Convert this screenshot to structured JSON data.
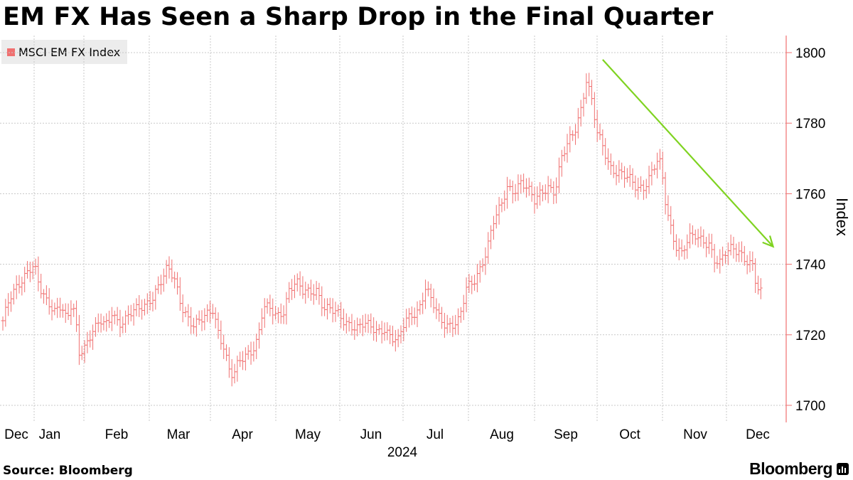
{
  "chart_data": {
    "type": "line",
    "style": "ohlc-bars",
    "title": "EM FX Has Seen a Sharp Drop in the Final Quarter",
    "series": [
      {
        "name": "MSCI EM FX Index",
        "color": "#f07070"
      }
    ],
    "ylabel": "Index",
    "ylim": [
      1695,
      1803
    ],
    "yticks": [
      1700,
      1720,
      1740,
      1760,
      1780,
      1800
    ],
    "xticks": [
      "Dec",
      "Jan",
      "Feb",
      "Mar",
      "Apr",
      "May",
      "Jun",
      "Jul",
      "Aug",
      "Sep",
      "Oct",
      "Nov",
      "Dec"
    ],
    "x_year": "2024",
    "anchors": [
      [
        0,
        1724
      ],
      [
        0.5,
        1730
      ],
      [
        1.15,
        1734
      ],
      [
        1.9,
        1739
      ],
      [
        2.3,
        1740
      ],
      [
        2.7,
        1733
      ],
      [
        3.2,
        1729
      ],
      [
        3.8,
        1727
      ],
      [
        4.3,
        1729
      ],
      [
        4.7,
        1724
      ],
      [
        5.0,
        1728
      ],
      [
        5.3,
        1726
      ],
      [
        5.55,
        1714
      ],
      [
        6.1,
        1717
      ],
      [
        6.6,
        1722
      ],
      [
        7.2,
        1724
      ],
      [
        7.7,
        1722
      ],
      [
        8.0,
        1726
      ],
      [
        8.5,
        1723
      ],
      [
        9.0,
        1725
      ],
      [
        9.5,
        1727
      ],
      [
        10.0,
        1727
      ],
      [
        10.5,
        1728
      ],
      [
        11.0,
        1731
      ],
      [
        11.5,
        1735
      ],
      [
        12.1,
        1739
      ],
      [
        12.6,
        1735
      ],
      [
        13.1,
        1728
      ],
      [
        13.6,
        1725
      ],
      [
        14.0,
        1723
      ],
      [
        14.5,
        1724
      ],
      [
        14.9,
        1725
      ],
      [
        15.4,
        1727
      ],
      [
        15.8,
        1721
      ],
      [
        16.2,
        1717
      ],
      [
        16.6,
        1710
      ],
      [
        16.9,
        1708
      ],
      [
        17.3,
        1712
      ],
      [
        17.8,
        1714
      ],
      [
        18.3,
        1716
      ],
      [
        18.7,
        1719
      ],
      [
        19.1,
        1728
      ],
      [
        19.6,
        1727
      ],
      [
        20.1,
        1725
      ],
      [
        20.6,
        1727
      ],
      [
        21.0,
        1733
      ],
      [
        21.5,
        1735
      ],
      [
        22.0,
        1732
      ],
      [
        22.5,
        1732
      ],
      [
        23.0,
        1733
      ],
      [
        23.5,
        1728
      ],
      [
        24.0,
        1727
      ],
      [
        24.5,
        1726
      ],
      [
        25.0,
        1724
      ],
      [
        25.5,
        1723
      ],
      [
        26.0,
        1722
      ],
      [
        26.5,
        1723
      ],
      [
        27.0,
        1722
      ],
      [
        27.5,
        1721
      ],
      [
        28.0,
        1722
      ],
      [
        28.5,
        1719
      ],
      [
        29.0,
        1718
      ],
      [
        29.5,
        1724
      ],
      [
        30.0,
        1726
      ],
      [
        30.5,
        1727
      ],
      [
        31.0,
        1733
      ],
      [
        31.5,
        1729
      ],
      [
        32.0,
        1725
      ],
      [
        32.5,
        1723
      ],
      [
        33.0,
        1723
      ],
      [
        33.5,
        1724
      ],
      [
        34.0,
        1733
      ],
      [
        34.5,
        1735
      ],
      [
        35.0,
        1739
      ],
      [
        35.5,
        1744
      ],
      [
        36.0,
        1752
      ],
      [
        36.5,
        1756
      ],
      [
        37.0,
        1762
      ],
      [
        37.5,
        1761
      ],
      [
        38.0,
        1763
      ],
      [
        38.5,
        1761
      ],
      [
        39.0,
        1758
      ],
      [
        39.5,
        1761
      ],
      [
        40.0,
        1762
      ],
      [
        40.5,
        1760
      ],
      [
        41.0,
        1770
      ],
      [
        41.5,
        1775
      ],
      [
        42.0,
        1779
      ],
      [
        42.4,
        1784
      ],
      [
        42.8,
        1792
      ],
      [
        43.2,
        1786
      ],
      [
        43.6,
        1777
      ],
      [
        44.0,
        1774
      ],
      [
        44.5,
        1768
      ],
      [
        45.0,
        1766
      ],
      [
        45.5,
        1765
      ],
      [
        46.0,
        1764
      ],
      [
        46.5,
        1762
      ],
      [
        47.0,
        1762
      ],
      [
        47.5,
        1765
      ],
      [
        48.0,
        1769
      ],
      [
        48.3,
        1768
      ],
      [
        48.5,
        1760
      ],
      [
        48.9,
        1752
      ],
      [
        49.3,
        1746
      ],
      [
        49.8,
        1743
      ],
      [
        50.3,
        1747
      ],
      [
        50.8,
        1748
      ],
      [
        51.3,
        1747
      ],
      [
        51.8,
        1746
      ],
      [
        52.2,
        1741
      ],
      [
        52.6,
        1740
      ],
      [
        53.0,
        1743
      ],
      [
        53.5,
        1745
      ],
      [
        54.0,
        1744
      ],
      [
        54.5,
        1741
      ],
      [
        55.0,
        1739
      ],
      [
        55.3,
        1733
      ],
      [
        55.6,
        1732
      ]
    ],
    "annotation": {
      "type": "arrow",
      "from": [
        44.0,
        1798
      ],
      "to": [
        56.5,
        1745
      ],
      "color": "#7fd321"
    }
  },
  "source": "Source: Bloomberg",
  "brand": "Bloomberg"
}
